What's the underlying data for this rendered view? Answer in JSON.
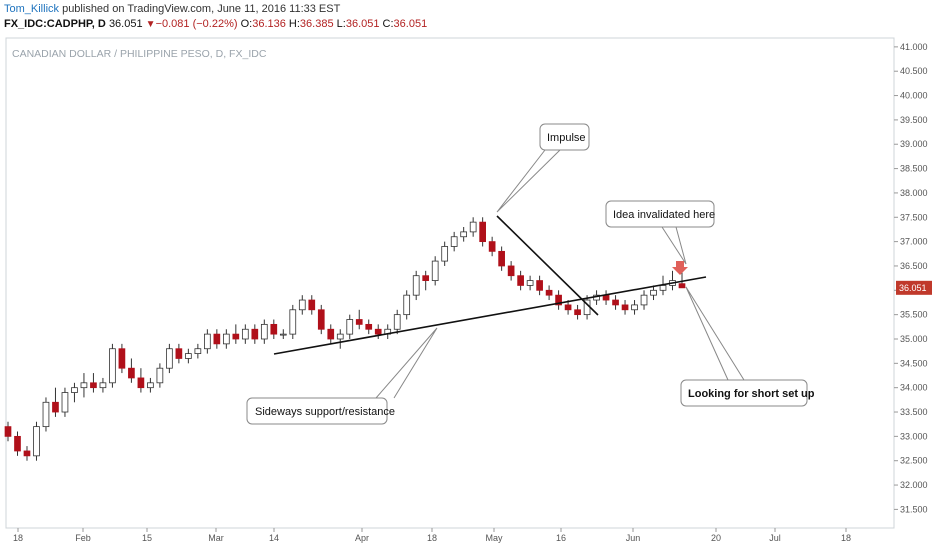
{
  "header": {
    "author": "Tom_Killick",
    "published": " published on TradingView.com, June 11, 2016 11:33 EST",
    "symbol": "FX_IDC:CADPHP, D",
    "last": "36.051",
    "arrow": "▼",
    "change": "−0.081 (−0.22%)",
    "o_label": "O:",
    "o_val": "36.136",
    "h_label": "H:",
    "h_val": "36.385",
    "l_label": "L:",
    "l_val": "36.051",
    "c_label": "C:",
    "c_val": "36.051"
  },
  "colors": {
    "up": "#ffffff",
    "down": "#b0101a",
    "wick": "#333333",
    "price_tag": "#c0392b",
    "marker": "#e0605a"
  },
  "chart_data": {
    "type": "candlestick",
    "title": "CANADIAN DOLLAR / PHILIPPINE PESO, D, FX_IDC",
    "ylim": [
      31.2,
      41.1
    ],
    "y_ticks": [
      "31.500",
      "32.000",
      "32.500",
      "33.000",
      "33.500",
      "34.000",
      "34.500",
      "35.000",
      "35.500",
      "36.000",
      "36.500",
      "37.000",
      "37.500",
      "38.000",
      "38.500",
      "39.000",
      "39.500",
      "40.000",
      "40.500",
      "41.000"
    ],
    "x_ticks": [
      "18",
      "Feb",
      "15",
      "Mar",
      "14",
      "Apr",
      "18",
      "May",
      "16",
      "Jun",
      "20",
      "Jul",
      "18"
    ],
    "last_price": "36.051",
    "grid": false,
    "candles": [
      [
        33.2,
        33.3,
        32.9,
        33.0
      ],
      [
        33.0,
        33.1,
        32.6,
        32.7
      ],
      [
        32.7,
        32.8,
        32.5,
        32.6
      ],
      [
        32.6,
        33.3,
        32.5,
        33.2
      ],
      [
        33.2,
        33.8,
        33.1,
        33.7
      ],
      [
        33.7,
        34.0,
        33.4,
        33.5
      ],
      [
        33.5,
        34.0,
        33.4,
        33.9
      ],
      [
        33.9,
        34.1,
        33.7,
        34.0
      ],
      [
        34.0,
        34.3,
        33.8,
        34.1
      ],
      [
        34.1,
        34.3,
        33.9,
        34.0
      ],
      [
        34.0,
        34.2,
        33.9,
        34.1
      ],
      [
        34.1,
        34.9,
        34.0,
        34.8
      ],
      [
        34.8,
        34.9,
        34.3,
        34.4
      ],
      [
        34.4,
        34.6,
        34.1,
        34.2
      ],
      [
        34.2,
        34.4,
        33.9,
        34.0
      ],
      [
        34.0,
        34.2,
        33.9,
        34.1
      ],
      [
        34.1,
        34.5,
        34.0,
        34.4
      ],
      [
        34.4,
        34.9,
        34.3,
        34.8
      ],
      [
        34.8,
        34.9,
        34.5,
        34.6
      ],
      [
        34.6,
        34.8,
        34.5,
        34.7
      ],
      [
        34.7,
        34.9,
        34.6,
        34.8
      ],
      [
        34.8,
        35.2,
        34.7,
        35.1
      ],
      [
        35.1,
        35.2,
        34.8,
        34.9
      ],
      [
        34.9,
        35.2,
        34.8,
        35.1
      ],
      [
        35.1,
        35.3,
        34.9,
        35.0
      ],
      [
        35.0,
        35.3,
        34.9,
        35.2
      ],
      [
        35.2,
        35.3,
        34.9,
        35.0
      ],
      [
        35.0,
        35.4,
        34.9,
        35.3
      ],
      [
        35.3,
        35.4,
        35.0,
        35.1
      ],
      [
        35.1,
        35.2,
        35.0,
        35.1
      ],
      [
        35.1,
        35.7,
        35.0,
        35.6
      ],
      [
        35.6,
        35.9,
        35.5,
        35.8
      ],
      [
        35.8,
        35.9,
        35.5,
        35.6
      ],
      [
        35.6,
        35.7,
        35.1,
        35.2
      ],
      [
        35.2,
        35.3,
        34.9,
        35.0
      ],
      [
        35.0,
        35.2,
        34.8,
        35.1
      ],
      [
        35.1,
        35.5,
        35.0,
        35.4
      ],
      [
        35.4,
        35.6,
        35.2,
        35.3
      ],
      [
        35.3,
        35.4,
        35.1,
        35.2
      ],
      [
        35.2,
        35.3,
        35.0,
        35.1
      ],
      [
        35.1,
        35.3,
        35.0,
        35.2
      ],
      [
        35.2,
        35.6,
        35.1,
        35.5
      ],
      [
        35.5,
        36.0,
        35.4,
        35.9
      ],
      [
        35.9,
        36.4,
        35.8,
        36.3
      ],
      [
        36.3,
        36.4,
        36.0,
        36.2
      ],
      [
        36.2,
        36.7,
        36.1,
        36.6
      ],
      [
        36.6,
        37.0,
        36.5,
        36.9
      ],
      [
        36.9,
        37.2,
        36.8,
        37.1
      ],
      [
        37.1,
        37.3,
        37.0,
        37.2
      ],
      [
        37.2,
        37.5,
        37.1,
        37.4
      ],
      [
        37.4,
        37.5,
        36.9,
        37.0
      ],
      [
        37.0,
        37.1,
        36.7,
        36.8
      ],
      [
        36.8,
        36.9,
        36.4,
        36.5
      ],
      [
        36.5,
        36.6,
        36.2,
        36.3
      ],
      [
        36.3,
        36.4,
        36.0,
        36.1
      ],
      [
        36.1,
        36.3,
        36.0,
        36.2
      ],
      [
        36.2,
        36.3,
        35.9,
        36.0
      ],
      [
        36.0,
        36.1,
        35.8,
        35.9
      ],
      [
        35.9,
        36.0,
        35.6,
        35.7
      ],
      [
        35.7,
        35.8,
        35.5,
        35.6
      ],
      [
        35.6,
        35.7,
        35.4,
        35.5
      ],
      [
        35.5,
        35.9,
        35.4,
        35.8
      ],
      [
        35.8,
        36.0,
        35.7,
        35.9
      ],
      [
        35.9,
        36.0,
        35.7,
        35.8
      ],
      [
        35.8,
        35.9,
        35.6,
        35.7
      ],
      [
        35.7,
        35.8,
        35.5,
        35.6
      ],
      [
        35.6,
        35.8,
        35.5,
        35.7
      ],
      [
        35.7,
        36.0,
        35.6,
        35.9
      ],
      [
        35.9,
        36.1,
        35.8,
        36.0
      ],
      [
        36.0,
        36.3,
        35.9,
        36.1
      ],
      [
        36.1,
        36.4,
        36.0,
        36.2
      ],
      [
        36.136,
        36.385,
        36.051,
        36.051
      ]
    ],
    "annotations": [
      {
        "text": "Impulse",
        "bold": false
      },
      {
        "text": "Idea invalidated here",
        "bold": false
      },
      {
        "text": "Sideways support/resistance",
        "bold": false
      },
      {
        "text": "Looking for short set up",
        "bold": true
      }
    ]
  }
}
